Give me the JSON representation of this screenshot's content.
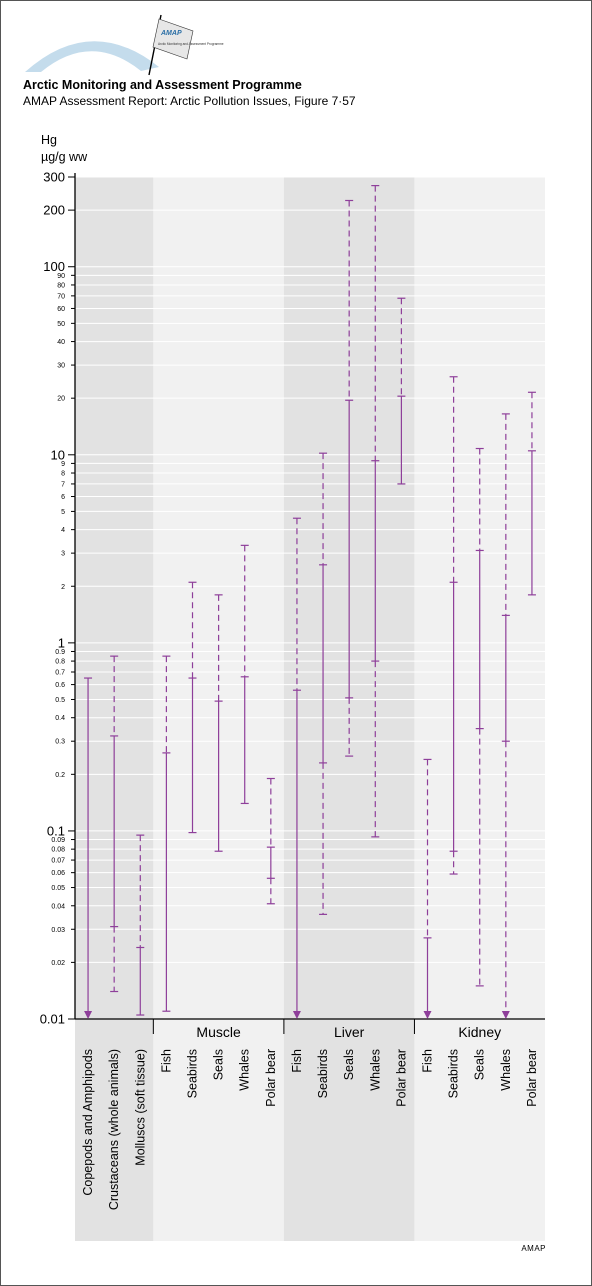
{
  "header": {
    "logo_text_line1": "AMAP",
    "logo_text_line2": "Arctic Monitoring and Assessment Programme",
    "title": "Arctic Monitoring and Assessment Programme",
    "subtitle": "AMAP Assessment Report: Arctic Pollution Issues, Figure 7·57"
  },
  "footer": {
    "credit": "AMAP"
  },
  "colors": {
    "series": "#8e3f9a",
    "band_dark": "#e2e2e2",
    "band_light": "#f1f1f1",
    "grid": "#ffffff"
  },
  "chart_data": {
    "type": "range",
    "ylabel_line1": "Hg",
    "ylabel_line2": "µg/g ww",
    "yscale": "log",
    "ylim": [
      0.01,
      300
    ],
    "yticks": [
      {
        "v": 300,
        "label": "300",
        "major": true
      },
      {
        "v": 200,
        "label": "200",
        "major": true
      },
      {
        "v": 100,
        "label": "100",
        "major": true
      },
      {
        "v": 90,
        "label": "90",
        "major": false
      },
      {
        "v": 80,
        "label": "80",
        "major": false
      },
      {
        "v": 70,
        "label": "70",
        "major": false
      },
      {
        "v": 60,
        "label": "60",
        "major": false
      },
      {
        "v": 50,
        "label": "50",
        "major": false
      },
      {
        "v": 40,
        "label": "40",
        "major": false
      },
      {
        "v": 30,
        "label": "30",
        "major": false
      },
      {
        "v": 20,
        "label": "20",
        "major": false
      },
      {
        "v": 10,
        "label": "10",
        "major": true
      },
      {
        "v": 9,
        "label": "9",
        "major": false
      },
      {
        "v": 8,
        "label": "8",
        "major": false
      },
      {
        "v": 7,
        "label": "7",
        "major": false
      },
      {
        "v": 6,
        "label": "6",
        "major": false
      },
      {
        "v": 5,
        "label": "5",
        "major": false
      },
      {
        "v": 4,
        "label": "4",
        "major": false
      },
      {
        "v": 3,
        "label": "3",
        "major": false
      },
      {
        "v": 2,
        "label": "2",
        "major": false
      },
      {
        "v": 1,
        "label": "1",
        "major": true
      },
      {
        "v": 0.9,
        "label": "0.9",
        "major": false
      },
      {
        "v": 0.8,
        "label": "0.8",
        "major": false
      },
      {
        "v": 0.7,
        "label": "0.7",
        "major": false
      },
      {
        "v": 0.6,
        "label": "0.6",
        "major": false
      },
      {
        "v": 0.5,
        "label": "0.5",
        "major": false
      },
      {
        "v": 0.4,
        "label": "0.4",
        "major": false
      },
      {
        "v": 0.3,
        "label": "0.3",
        "major": false
      },
      {
        "v": 0.2,
        "label": "0.2",
        "major": false
      },
      {
        "v": 0.1,
        "label": "0.1",
        "major": true
      },
      {
        "v": 0.09,
        "label": "0.09",
        "major": false
      },
      {
        "v": 0.08,
        "label": "0.08",
        "major": false
      },
      {
        "v": 0.07,
        "label": "0.07",
        "major": false
      },
      {
        "v": 0.06,
        "label": "0.06",
        "major": false
      },
      {
        "v": 0.05,
        "label": "0.05",
        "major": false
      },
      {
        "v": 0.04,
        "label": "0.04",
        "major": false
      },
      {
        "v": 0.03,
        "label": "0.03",
        "major": false
      },
      {
        "v": 0.02,
        "label": "0.02",
        "major": false
      },
      {
        "v": 0.01,
        "label": "0.01",
        "major": true
      }
    ],
    "groups": [
      {
        "name": "",
        "shade": "dark",
        "items": [
          {
            "label": "Copepods and Amphipods",
            "high": 0.65,
            "low": 0.01,
            "arrow": true
          },
          {
            "label": "Crustaceans (whole animals)",
            "high": 0.85,
            "mid": 0.32,
            "low_solid": 0.031,
            "low": 0.014
          },
          {
            "label": "Molluscs (soft tissue)",
            "high": 0.095,
            "mid": 0.024,
            "low": 0.0105
          }
        ]
      },
      {
        "name": "Muscle",
        "shade": "light",
        "items": [
          {
            "label": "Fish",
            "high": 0.85,
            "mid": 0.26,
            "low": 0.011
          },
          {
            "label": "Seabirds",
            "high": 2.1,
            "mid": 0.65,
            "low": 0.098
          },
          {
            "label": "Seals",
            "high": 1.8,
            "mid": 0.49,
            "low": 0.078
          },
          {
            "label": "Whales",
            "high": 3.3,
            "mid": 0.66,
            "low": 0.14
          },
          {
            "label": "Polar bear",
            "high": 0.19,
            "mid": 0.082,
            "low_solid": 0.056,
            "low": 0.041
          }
        ]
      },
      {
        "name": "Liver",
        "shade": "dark",
        "items": [
          {
            "label": "Fish",
            "high": 4.6,
            "mid": 0.56,
            "low": 0.01,
            "arrow": true
          },
          {
            "label": "Seabirds",
            "high": 10.2,
            "mid": 2.6,
            "low_solid": 0.23,
            "low": 0.036
          },
          {
            "label": "Seals",
            "high": 225,
            "mid": 19.5,
            "low_solid": 0.51,
            "low": 0.25
          },
          {
            "label": "Whales",
            "high": 270,
            "mid": 9.3,
            "low_solid": 0.8,
            "low": 0.093
          },
          {
            "label": "Polar bear",
            "high": 68,
            "mid": 20.5,
            "low": 7.0
          }
        ]
      },
      {
        "name": "Kidney",
        "shade": "light",
        "items": [
          {
            "label": "Fish",
            "high": 0.24,
            "mid": 0.027,
            "low": 0.01,
            "arrow": true
          },
          {
            "label": "Seabirds",
            "high": 26,
            "mid": 2.1,
            "low_solid": 0.078,
            "low": 0.059
          },
          {
            "label": "Seals",
            "high": 10.8,
            "mid": 3.1,
            "low_solid": 0.35,
            "low": 0.015
          },
          {
            "label": "Whales",
            "high": 16.5,
            "mid": 1.4,
            "low_solid": 0.3,
            "low": 0.01,
            "arrow": true
          },
          {
            "label": "Polar bear",
            "high": 21.5,
            "mid": 10.5,
            "low": 1.8
          }
        ]
      }
    ]
  }
}
